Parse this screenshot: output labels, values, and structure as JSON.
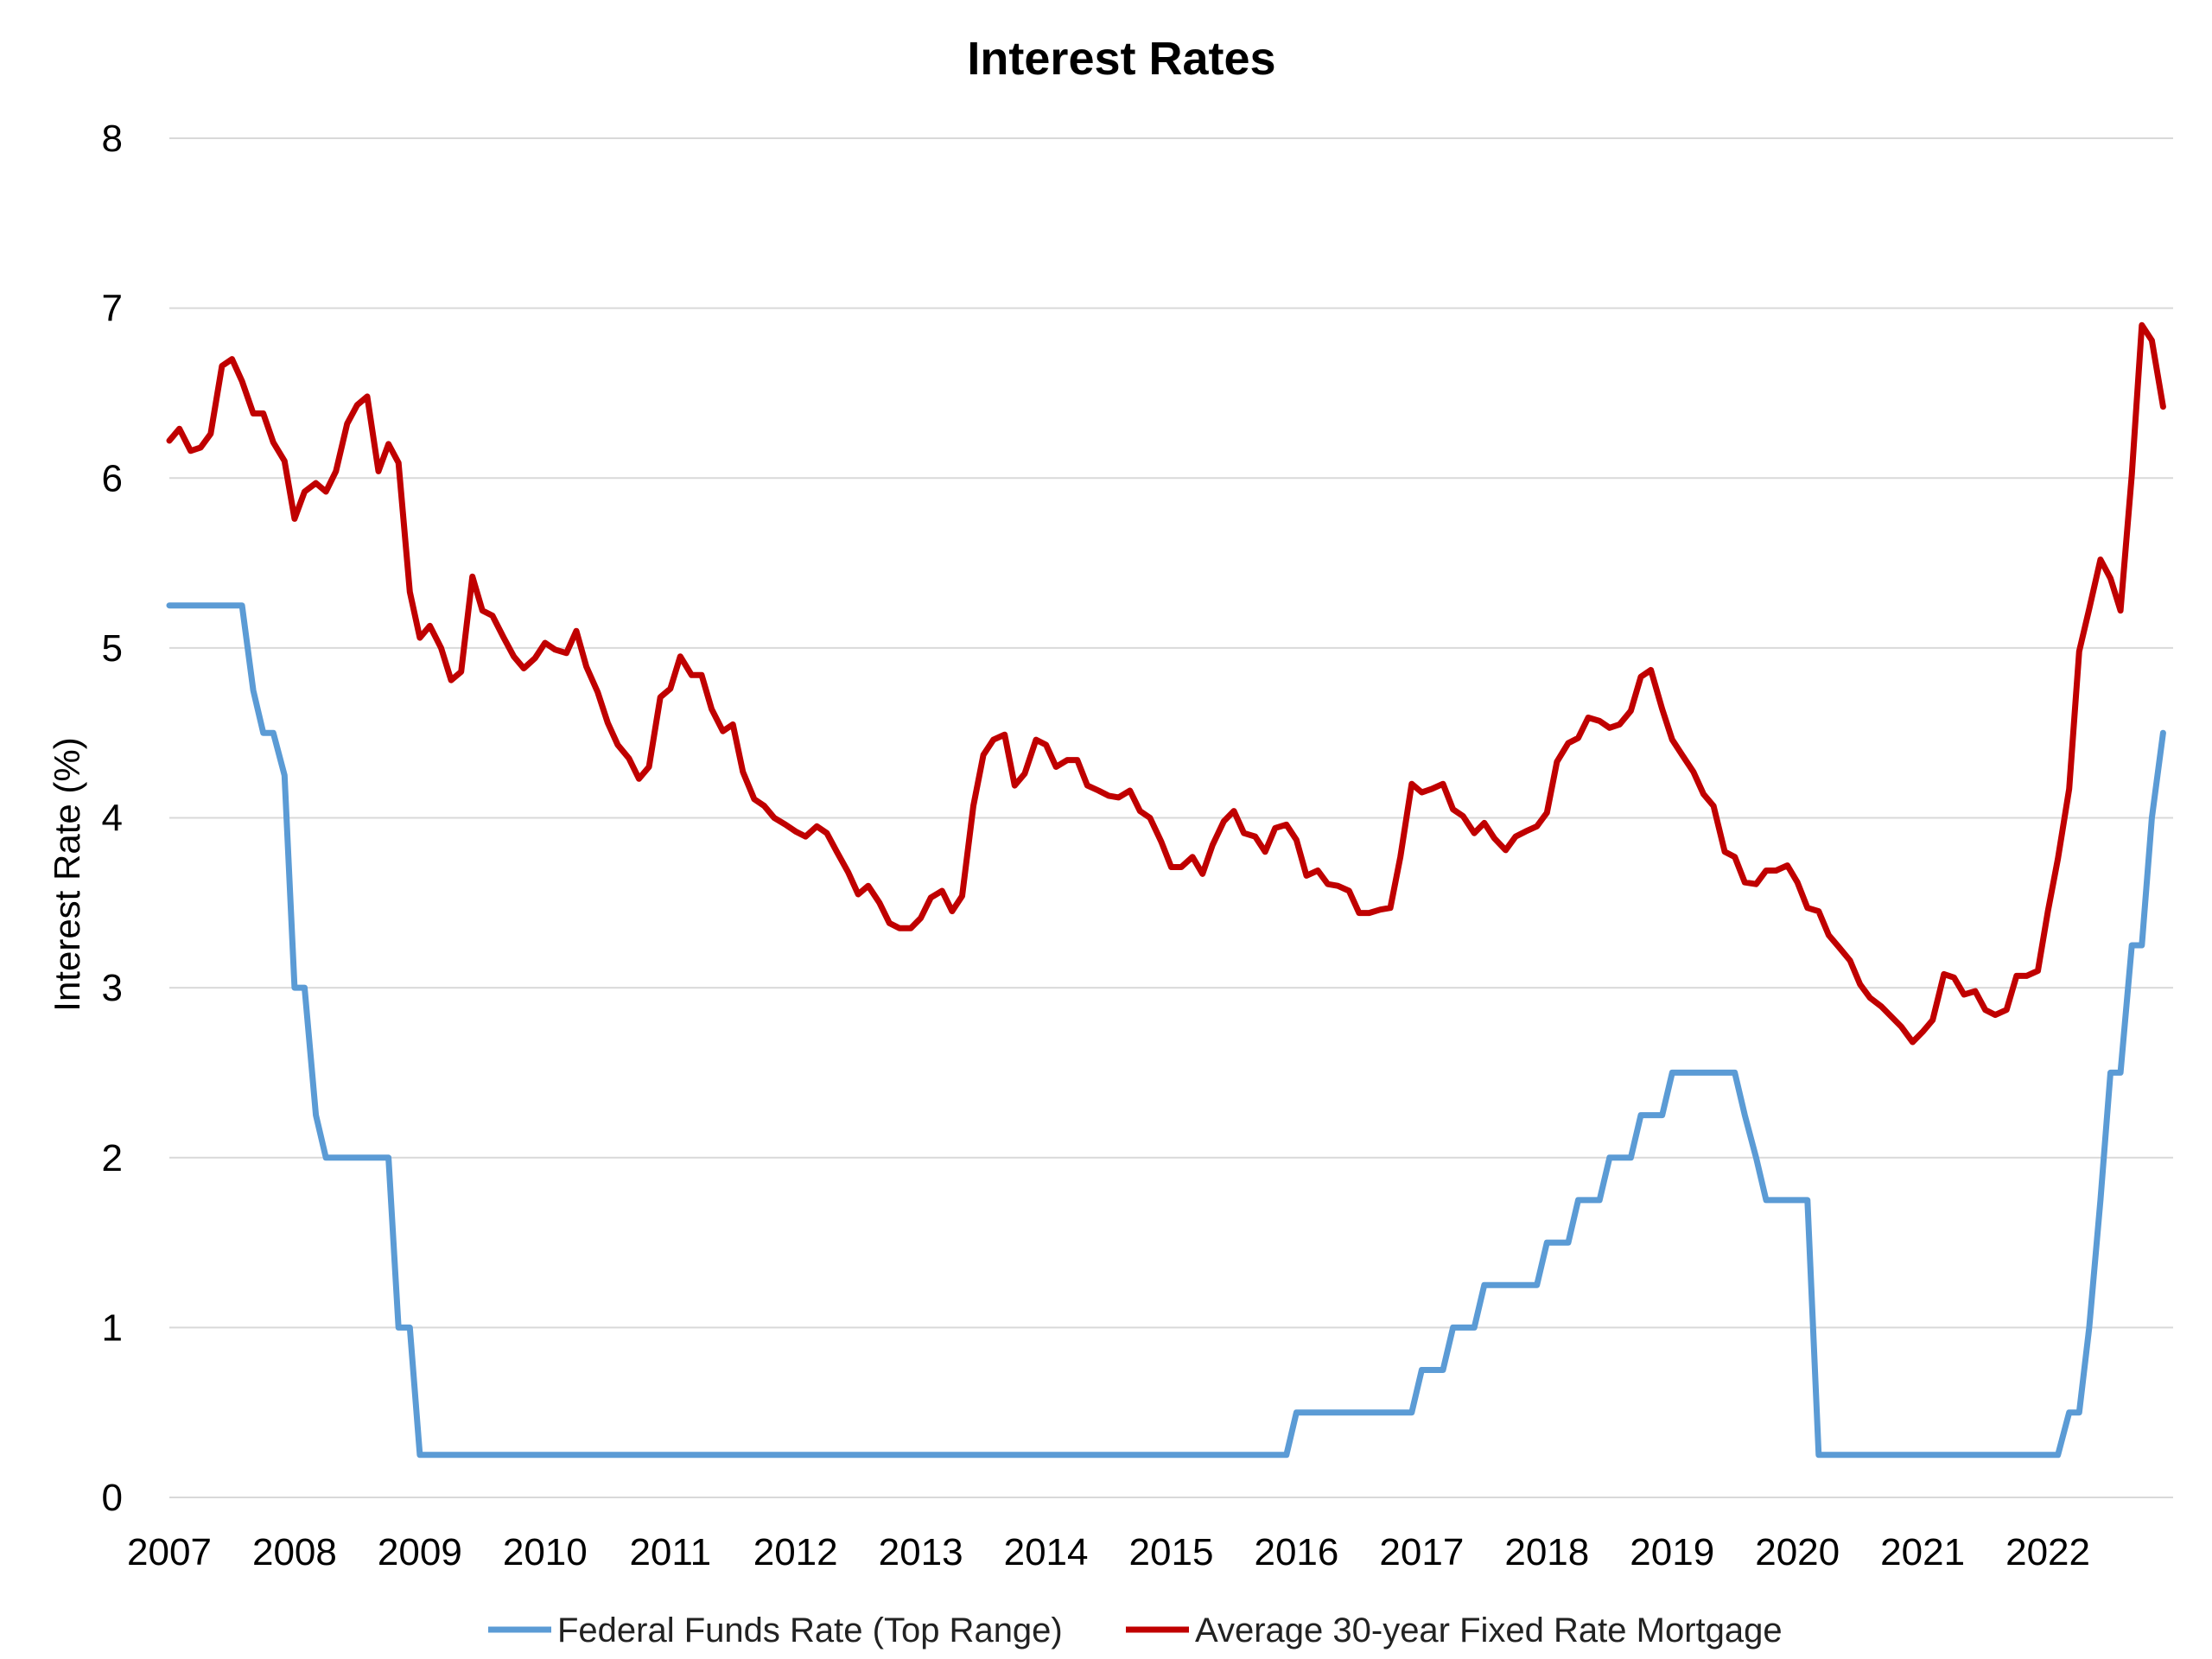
{
  "chart_data": {
    "type": "line",
    "title": "Interest Rates",
    "xlabel": "",
    "ylabel": "Interest Rate (%)",
    "xlim": [
      2007,
      2023
    ],
    "ylim": [
      0,
      8
    ],
    "yticks": [
      "0",
      "1",
      "2",
      "3",
      "4",
      "5",
      "6",
      "7",
      "8"
    ],
    "xticks": [
      "2007",
      "2008",
      "2009",
      "2010",
      "2011",
      "2012",
      "2013",
      "2014",
      "2015",
      "2016",
      "2017",
      "2018",
      "2019",
      "2020",
      "2021",
      "2022"
    ],
    "grid": true,
    "legend_position": "bottom",
    "series": [
      {
        "name": "Federal Funds Rate (Top Range)",
        "color": "#5b9bd5",
        "points": [
          [
            2007.0,
            5.25
          ],
          [
            2007.58,
            5.25
          ],
          [
            2007.67,
            4.75
          ],
          [
            2007.75,
            4.5
          ],
          [
            2007.83,
            4.5
          ],
          [
            2007.92,
            4.25
          ],
          [
            2008.0,
            3.0
          ],
          [
            2008.08,
            3.0
          ],
          [
            2008.17,
            2.25
          ],
          [
            2008.25,
            2.0
          ],
          [
            2008.33,
            2.0
          ],
          [
            2008.75,
            2.0
          ],
          [
            2008.83,
            1.0
          ],
          [
            2008.92,
            1.0
          ],
          [
            2009.0,
            0.25
          ],
          [
            2015.92,
            0.25
          ],
          [
            2016.0,
            0.5
          ],
          [
            2016.92,
            0.5
          ],
          [
            2017.0,
            0.75
          ],
          [
            2017.17,
            0.75
          ],
          [
            2017.25,
            1.0
          ],
          [
            2017.42,
            1.0
          ],
          [
            2017.5,
            1.25
          ],
          [
            2017.92,
            1.25
          ],
          [
            2018.0,
            1.5
          ],
          [
            2018.17,
            1.5
          ],
          [
            2018.25,
            1.75
          ],
          [
            2018.42,
            1.75
          ],
          [
            2018.5,
            2.0
          ],
          [
            2018.67,
            2.0
          ],
          [
            2018.75,
            2.25
          ],
          [
            2018.92,
            2.25
          ],
          [
            2019.0,
            2.5
          ],
          [
            2019.5,
            2.5
          ],
          [
            2019.58,
            2.25
          ],
          [
            2019.67,
            2.0
          ],
          [
            2019.75,
            1.75
          ],
          [
            2020.08,
            1.75
          ],
          [
            2020.17,
            0.25
          ],
          [
            2022.08,
            0.25
          ],
          [
            2022.17,
            0.5
          ],
          [
            2022.25,
            0.5
          ],
          [
            2022.33,
            1.0
          ],
          [
            2022.42,
            1.75
          ],
          [
            2022.5,
            2.5
          ],
          [
            2022.58,
            2.5
          ],
          [
            2022.67,
            3.25
          ],
          [
            2022.75,
            3.25
          ],
          [
            2022.83,
            4.0
          ],
          [
            2022.92,
            4.5
          ]
        ]
      },
      {
        "name": "Average 30-year Fixed Rate Mortgage",
        "color": "#c00000",
        "points": [
          [
            2007.0,
            6.22
          ],
          [
            2007.08,
            6.29
          ],
          [
            2007.17,
            6.16
          ],
          [
            2007.25,
            6.18
          ],
          [
            2007.33,
            6.26
          ],
          [
            2007.42,
            6.66
          ],
          [
            2007.5,
            6.7
          ],
          [
            2007.58,
            6.57
          ],
          [
            2007.67,
            6.38
          ],
          [
            2007.75,
            6.38
          ],
          [
            2007.83,
            6.21
          ],
          [
            2007.92,
            6.1
          ],
          [
            2008.0,
            5.76
          ],
          [
            2008.08,
            5.92
          ],
          [
            2008.17,
            5.97
          ],
          [
            2008.25,
            5.92
          ],
          [
            2008.33,
            6.04
          ],
          [
            2008.42,
            6.32
          ],
          [
            2008.5,
            6.43
          ],
          [
            2008.58,
            6.48
          ],
          [
            2008.67,
            6.04
          ],
          [
            2008.75,
            6.2
          ],
          [
            2008.83,
            6.09
          ],
          [
            2008.92,
            5.33
          ],
          [
            2009.0,
            5.06
          ],
          [
            2009.08,
            5.13
          ],
          [
            2009.17,
            5.0
          ],
          [
            2009.25,
            4.81
          ],
          [
            2009.33,
            4.86
          ],
          [
            2009.42,
            5.42
          ],
          [
            2009.5,
            5.22
          ],
          [
            2009.58,
            5.19
          ],
          [
            2009.67,
            5.06
          ],
          [
            2009.75,
            4.95
          ],
          [
            2009.83,
            4.88
          ],
          [
            2009.92,
            4.94
          ],
          [
            2010.0,
            5.03
          ],
          [
            2010.08,
            4.99
          ],
          [
            2010.17,
            4.97
          ],
          [
            2010.25,
            5.1
          ],
          [
            2010.33,
            4.89
          ],
          [
            2010.42,
            4.74
          ],
          [
            2010.5,
            4.56
          ],
          [
            2010.58,
            4.43
          ],
          [
            2010.67,
            4.35
          ],
          [
            2010.75,
            4.23
          ],
          [
            2010.83,
            4.3
          ],
          [
            2010.92,
            4.71
          ],
          [
            2011.0,
            4.76
          ],
          [
            2011.08,
            4.95
          ],
          [
            2011.17,
            4.84
          ],
          [
            2011.25,
            4.84
          ],
          [
            2011.33,
            4.64
          ],
          [
            2011.42,
            4.51
          ],
          [
            2011.5,
            4.55
          ],
          [
            2011.58,
            4.27
          ],
          [
            2011.67,
            4.11
          ],
          [
            2011.75,
            4.07
          ],
          [
            2011.83,
            4.0
          ],
          [
            2011.92,
            3.96
          ],
          [
            2012.0,
            3.92
          ],
          [
            2012.08,
            3.89
          ],
          [
            2012.17,
            3.95
          ],
          [
            2012.25,
            3.91
          ],
          [
            2012.33,
            3.8
          ],
          [
            2012.42,
            3.68
          ],
          [
            2012.5,
            3.55
          ],
          [
            2012.58,
            3.6
          ],
          [
            2012.67,
            3.5
          ],
          [
            2012.75,
            3.38
          ],
          [
            2012.83,
            3.35
          ],
          [
            2012.92,
            3.35
          ],
          [
            2013.0,
            3.41
          ],
          [
            2013.08,
            3.53
          ],
          [
            2013.17,
            3.57
          ],
          [
            2013.25,
            3.45
          ],
          [
            2013.33,
            3.54
          ],
          [
            2013.42,
            4.07
          ],
          [
            2013.5,
            4.37
          ],
          [
            2013.58,
            4.46
          ],
          [
            2013.67,
            4.49
          ],
          [
            2013.75,
            4.19
          ],
          [
            2013.83,
            4.26
          ],
          [
            2013.92,
            4.46
          ],
          [
            2014.0,
            4.43
          ],
          [
            2014.08,
            4.3
          ],
          [
            2014.17,
            4.34
          ],
          [
            2014.25,
            4.34
          ],
          [
            2014.33,
            4.19
          ],
          [
            2014.42,
            4.16
          ],
          [
            2014.5,
            4.13
          ],
          [
            2014.58,
            4.12
          ],
          [
            2014.67,
            4.16
          ],
          [
            2014.75,
            4.04
          ],
          [
            2014.83,
            4.0
          ],
          [
            2014.92,
            3.86
          ],
          [
            2015.0,
            3.71
          ],
          [
            2015.08,
            3.71
          ],
          [
            2015.17,
            3.77
          ],
          [
            2015.25,
            3.67
          ],
          [
            2015.33,
            3.84
          ],
          [
            2015.42,
            3.98
          ],
          [
            2015.5,
            4.04
          ],
          [
            2015.58,
            3.91
          ],
          [
            2015.67,
            3.89
          ],
          [
            2015.75,
            3.8
          ],
          [
            2015.83,
            3.94
          ],
          [
            2015.92,
            3.96
          ],
          [
            2016.0,
            3.87
          ],
          [
            2016.08,
            3.66
          ],
          [
            2016.17,
            3.69
          ],
          [
            2016.25,
            3.61
          ],
          [
            2016.33,
            3.6
          ],
          [
            2016.42,
            3.57
          ],
          [
            2016.5,
            3.44
          ],
          [
            2016.58,
            3.44
          ],
          [
            2016.67,
            3.46
          ],
          [
            2016.75,
            3.47
          ],
          [
            2016.83,
            3.77
          ],
          [
            2016.92,
            4.2
          ],
          [
            2017.0,
            4.15
          ],
          [
            2017.08,
            4.17
          ],
          [
            2017.17,
            4.2
          ],
          [
            2017.25,
            4.05
          ],
          [
            2017.33,
            4.01
          ],
          [
            2017.42,
            3.91
          ],
          [
            2017.5,
            3.97
          ],
          [
            2017.58,
            3.88
          ],
          [
            2017.67,
            3.81
          ],
          [
            2017.75,
            3.89
          ],
          [
            2017.83,
            3.92
          ],
          [
            2017.92,
            3.95
          ],
          [
            2018.0,
            4.03
          ],
          [
            2018.08,
            4.33
          ],
          [
            2018.17,
            4.44
          ],
          [
            2018.25,
            4.47
          ],
          [
            2018.33,
            4.59
          ],
          [
            2018.42,
            4.57
          ],
          [
            2018.5,
            4.53
          ],
          [
            2018.58,
            4.55
          ],
          [
            2018.67,
            4.63
          ],
          [
            2018.75,
            4.83
          ],
          [
            2018.83,
            4.87
          ],
          [
            2018.92,
            4.64
          ],
          [
            2019.0,
            4.46
          ],
          [
            2019.08,
            4.37
          ],
          [
            2019.17,
            4.27
          ],
          [
            2019.25,
            4.14
          ],
          [
            2019.33,
            4.07
          ],
          [
            2019.42,
            3.8
          ],
          [
            2019.5,
            3.77
          ],
          [
            2019.58,
            3.62
          ],
          [
            2019.67,
            3.61
          ],
          [
            2019.75,
            3.69
          ],
          [
            2019.83,
            3.69
          ],
          [
            2019.92,
            3.72
          ],
          [
            2020.0,
            3.62
          ],
          [
            2020.08,
            3.47
          ],
          [
            2020.17,
            3.45
          ],
          [
            2020.25,
            3.31
          ],
          [
            2020.33,
            3.24
          ],
          [
            2020.42,
            3.16
          ],
          [
            2020.5,
            3.02
          ],
          [
            2020.58,
            2.94
          ],
          [
            2020.67,
            2.89
          ],
          [
            2020.75,
            2.83
          ],
          [
            2020.83,
            2.77
          ],
          [
            2020.92,
            2.68
          ],
          [
            2021.0,
            2.74
          ],
          [
            2021.08,
            2.81
          ],
          [
            2021.17,
            3.08
          ],
          [
            2021.25,
            3.06
          ],
          [
            2021.33,
            2.96
          ],
          [
            2021.42,
            2.98
          ],
          [
            2021.5,
            2.87
          ],
          [
            2021.58,
            2.84
          ],
          [
            2021.67,
            2.87
          ],
          [
            2021.75,
            3.07
          ],
          [
            2021.83,
            3.07
          ],
          [
            2021.92,
            3.1
          ],
          [
            2022.0,
            3.45
          ],
          [
            2022.08,
            3.76
          ],
          [
            2022.17,
            4.17
          ],
          [
            2022.25,
            4.98
          ],
          [
            2022.33,
            5.23
          ],
          [
            2022.42,
            5.52
          ],
          [
            2022.5,
            5.41
          ],
          [
            2022.58,
            5.22
          ],
          [
            2022.67,
            6.02
          ],
          [
            2022.75,
            6.9
          ],
          [
            2022.83,
            6.81
          ],
          [
            2022.92,
            6.42
          ]
        ]
      }
    ]
  }
}
